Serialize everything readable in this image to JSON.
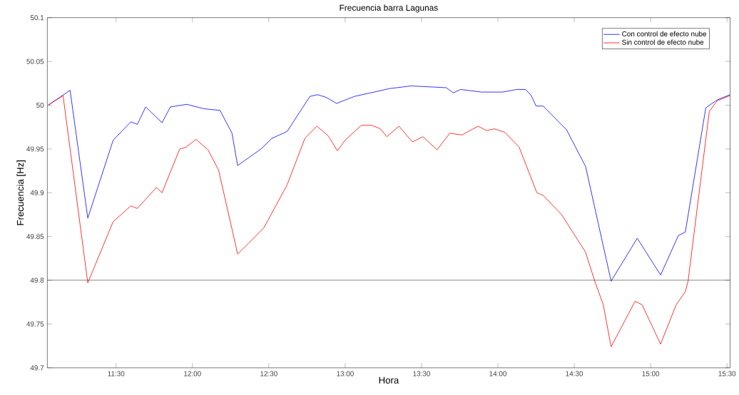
{
  "chart_data": {
    "type": "line",
    "title": "Frecuencia barra Lagunas",
    "xlabel": "Hora",
    "ylabel": "Frecuencia [Hz]",
    "xlim": [
      11.05,
      15.52
    ],
    "ylim": [
      49.7,
      50.1
    ],
    "xticks": [
      {
        "value": 11.5,
        "label": "11:30"
      },
      {
        "value": 12,
        "label": "12:00"
      },
      {
        "value": 12.5,
        "label": "12:30"
      },
      {
        "value": 13,
        "label": "13:00"
      },
      {
        "value": 13.5,
        "label": "13:30"
      },
      {
        "value": 14,
        "label": "14:00"
      },
      {
        "value": 14.5,
        "label": "14:30"
      },
      {
        "value": 15,
        "label": "15:00"
      },
      {
        "value": 15.5,
        "label": "15:30"
      }
    ],
    "yticks": [
      49.7,
      49.75,
      49.8,
      49.85,
      49.9,
      49.95,
      50,
      50.05,
      50.1
    ],
    "legend": "top right",
    "grid": false,
    "marker": "none",
    "line_style": "solid",
    "ref_lines": [
      {
        "axis": "y",
        "value": 49.8,
        "color": "#000000"
      }
    ],
    "series": [
      {
        "name": "Con control de efecto nube",
        "color": "#0000ff",
        "x": [
          11.056,
          11.199,
          11.315,
          11.481,
          11.597,
          11.639,
          11.694,
          11.801,
          11.856,
          11.963,
          12.074,
          12.181,
          12.259,
          12.296,
          12.449,
          12.519,
          12.62,
          12.769,
          12.819,
          12.875,
          12.944,
          13.06,
          13.292,
          13.431,
          13.662,
          13.708,
          13.755,
          13.894,
          14.032,
          14.125,
          14.181,
          14.218,
          14.25,
          14.296,
          14.449,
          14.574,
          14.741,
          14.912,
          15.065,
          15.181,
          15.227,
          15.361,
          15.435,
          15.52
        ],
        "values": [
          50.0,
          50.017,
          49.871,
          49.96,
          49.981,
          49.978,
          49.998,
          49.98,
          49.998,
          50.001,
          49.996,
          49.994,
          49.968,
          49.931,
          49.95,
          49.962,
          49.97,
          50.01,
          50.012,
          50.009,
          50.002,
          50.01,
          50.019,
          50.022,
          50.02,
          50.014,
          50.018,
          50.015,
          50.015,
          50.018,
          50.018,
          50.011,
          49.999,
          49.999,
          49.972,
          49.93,
          49.799,
          49.848,
          49.806,
          49.851,
          49.855,
          49.997,
          50.006,
          50.012
        ]
      },
      {
        "name": "Sin control de efecto nube",
        "color": "#ff0000",
        "x": [
          11.056,
          11.153,
          11.315,
          11.481,
          11.597,
          11.639,
          11.764,
          11.801,
          11.917,
          11.958,
          12.023,
          12.102,
          12.171,
          12.296,
          12.366,
          12.468,
          12.62,
          12.736,
          12.815,
          12.889,
          12.949,
          13.0,
          13.106,
          13.176,
          13.231,
          13.273,
          13.352,
          13.44,
          13.509,
          13.602,
          13.685,
          13.764,
          13.87,
          13.926,
          13.977,
          14.046,
          14.139,
          14.255,
          14.296,
          14.417,
          14.574,
          14.634,
          14.69,
          14.741,
          14.898,
          14.944,
          15.065,
          15.167,
          15.227,
          15.245,
          15.384,
          15.435,
          15.52
        ],
        "values": [
          50.0,
          50.011,
          49.797,
          49.867,
          49.885,
          49.882,
          49.906,
          49.9,
          49.95,
          49.952,
          49.961,
          49.949,
          49.926,
          49.83,
          49.842,
          49.86,
          49.909,
          49.962,
          49.976,
          49.965,
          49.948,
          49.96,
          49.977,
          49.977,
          49.973,
          49.964,
          49.976,
          49.958,
          49.964,
          49.949,
          49.968,
          49.966,
          49.976,
          49.971,
          49.973,
          49.969,
          49.952,
          49.9,
          49.897,
          49.875,
          49.832,
          49.799,
          49.772,
          49.724,
          49.776,
          49.772,
          49.727,
          49.772,
          49.787,
          49.799,
          49.993,
          50.005,
          50.011
        ]
      }
    ]
  }
}
